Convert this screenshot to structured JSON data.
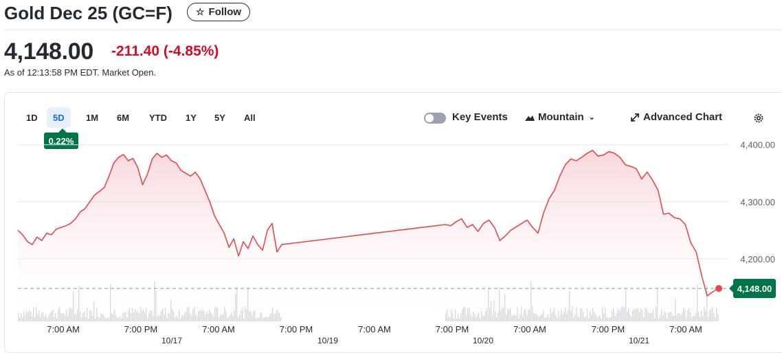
{
  "header": {
    "title": "Gold Dec 25 (GC=F)",
    "follow_label": "Follow",
    "price": "4,148.00",
    "change": "-211.40 (-4.85%)",
    "as_of": "As of 12:13:58 PM EDT. Market Open."
  },
  "toolbar": {
    "ranges": [
      "1D",
      "5D",
      "1M",
      "6M",
      "YTD",
      "1Y",
      "5Y",
      "All"
    ],
    "active_range": "5D",
    "range_change_badge": "0.22%",
    "key_events_label": "Key Events",
    "chart_style_label": "Mountain",
    "advanced_chart_label": "Advanced Chart"
  },
  "colors": {
    "line": "#e5484d",
    "fill": "#fbe1e4",
    "positive_badge": "#00754a",
    "negative_text": "#d60a22",
    "active_tab": "#0f69ff"
  },
  "chart_data": {
    "type": "area",
    "title": "",
    "xlabel": "",
    "ylabel": "",
    "ylim": [
      4110,
      4420
    ],
    "y_ticks": [
      "4,400.00",
      "4,300.00",
      "4,200.00"
    ],
    "y_tick_values": [
      4400,
      4300,
      4200
    ],
    "x_tick_labels": [
      "7:00 AM",
      "7:00 PM",
      "7:00 AM",
      "7:00 PM",
      "7:00 AM",
      "7:00 PM",
      "7:00 AM",
      "7:00 PM",
      "7:00 AM"
    ],
    "date_labels": [
      "10/17",
      "10/19",
      "10/20",
      "10/21"
    ],
    "last_price": 4148.0,
    "last_price_label": "4,148.00",
    "reference_line": 4148.0,
    "grid": true,
    "series": [
      {
        "values": [
          4250,
          4242,
          4230,
          4225,
          4238,
          4232,
          4245,
          4242,
          4252,
          4255,
          4258,
          4262,
          4270,
          4282,
          4288,
          4300,
          4312,
          4318,
          4325,
          4345,
          4368,
          4378,
          4383,
          4372,
          4376,
          4360,
          4330,
          4348,
          4375,
          4385,
          4378,
          4382,
          4372,
          4368,
          4355,
          4350,
          4345,
          4352,
          4340,
          4320,
          4300,
          4275,
          4260,
          4245,
          4220,
          4235,
          4205,
          4230,
          4218,
          4240,
          4225,
          4215,
          4250,
          4262,
          4212,
          4225,
          4260,
          4258,
          4265,
          4270,
          4255,
          4260,
          4248,
          4262,
          4268,
          4255,
          4232,
          4240,
          4250,
          4256,
          4262,
          4268,
          4255,
          4245,
          4280,
          4305,
          4320,
          4345,
          4365,
          4375,
          4372,
          4378,
          4385,
          4390,
          4380,
          4382,
          4388,
          4385,
          4378,
          4365,
          4362,
          4358,
          4340,
          4352,
          4338,
          4320,
          4278,
          4280,
          4272,
          4270,
          4260,
          4228,
          4212,
          4170,
          4135,
          4142,
          4148
        ]
      }
    ],
    "volume_visible": true
  }
}
